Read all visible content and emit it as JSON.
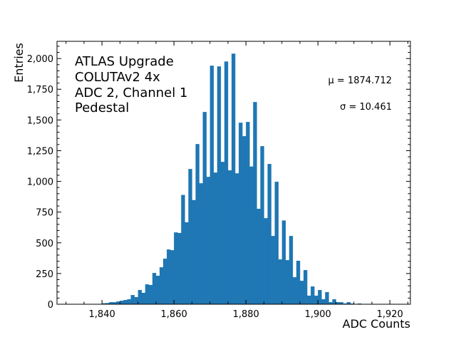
{
  "chart_data": {
    "type": "bar",
    "title": "",
    "xlabel": "ADC Counts",
    "ylabel": "Entries",
    "xlim": [
      1827.5,
      1925.7
    ],
    "ylim": [
      0,
      2140
    ],
    "grid": false,
    "bar_color": "#1f77b4",
    "x_ticks": [
      "1,840",
      "1,860",
      "1,880",
      "1,900",
      "1,920"
    ],
    "x_tick_values": [
      1840,
      1860,
      1880,
      1900,
      1920
    ],
    "y_ticks": [
      "0",
      "250",
      "500",
      "750",
      "1,000",
      "1,250",
      "1,500",
      "1,750",
      "2,000"
    ],
    "y_tick_values": [
      0,
      250,
      500,
      750,
      1000,
      1250,
      1500,
      1750,
      2000
    ],
    "annotation_lines": [
      "ATLAS Upgrade",
      "COLUTAv2 4x",
      "ADC 2, Channel 1",
      "Pedestal"
    ],
    "stats": {
      "mu_label": "μ = 1874.712",
      "sigma_label": "σ = 10.461"
    },
    "bin_edges_start": [
      1840,
      1841,
      1842,
      1843,
      1844,
      1845,
      1846,
      1847,
      1848,
      1849,
      1850,
      1851,
      1852,
      1853,
      1854,
      1855,
      1856,
      1857,
      1858,
      1859,
      1860,
      1861,
      1862,
      1863,
      1864,
      1865,
      1866,
      1867,
      1868,
      1869,
      1870,
      1871,
      1872,
      1873,
      1874,
      1875,
      1876,
      1877,
      1878,
      1879,
      1880,
      1881,
      1882,
      1883,
      1884,
      1885,
      1886,
      1887,
      1888,
      1889,
      1890,
      1891,
      1892,
      1893,
      1894,
      1895,
      1896,
      1897,
      1898,
      1899,
      1900,
      1901,
      1902,
      1903,
      1904,
      1905,
      1906,
      1907,
      1908,
      1909,
      1910,
      1911
    ],
    "values": [
      8,
      10,
      17,
      17,
      23,
      29,
      35,
      41,
      75,
      58,
      116,
      93,
      162,
      157,
      255,
      232,
      301,
      371,
      446,
      440,
      585,
      580,
      890,
      667,
      1101,
      848,
      1304,
      985,
      1565,
      1037,
      1942,
      1072,
      1936,
      1159,
      1976,
      1090,
      2040,
      1066,
      1478,
      1368,
      1484,
      1121,
      1646,
      777,
      1287,
      701,
      1142,
      556,
      997,
      365,
      682,
      359,
      556,
      220,
      354,
      191,
      278,
      70,
      145,
      70,
      116,
      41,
      99,
      17,
      41,
      17,
      17,
      6,
      17,
      6,
      0,
      6
    ]
  }
}
